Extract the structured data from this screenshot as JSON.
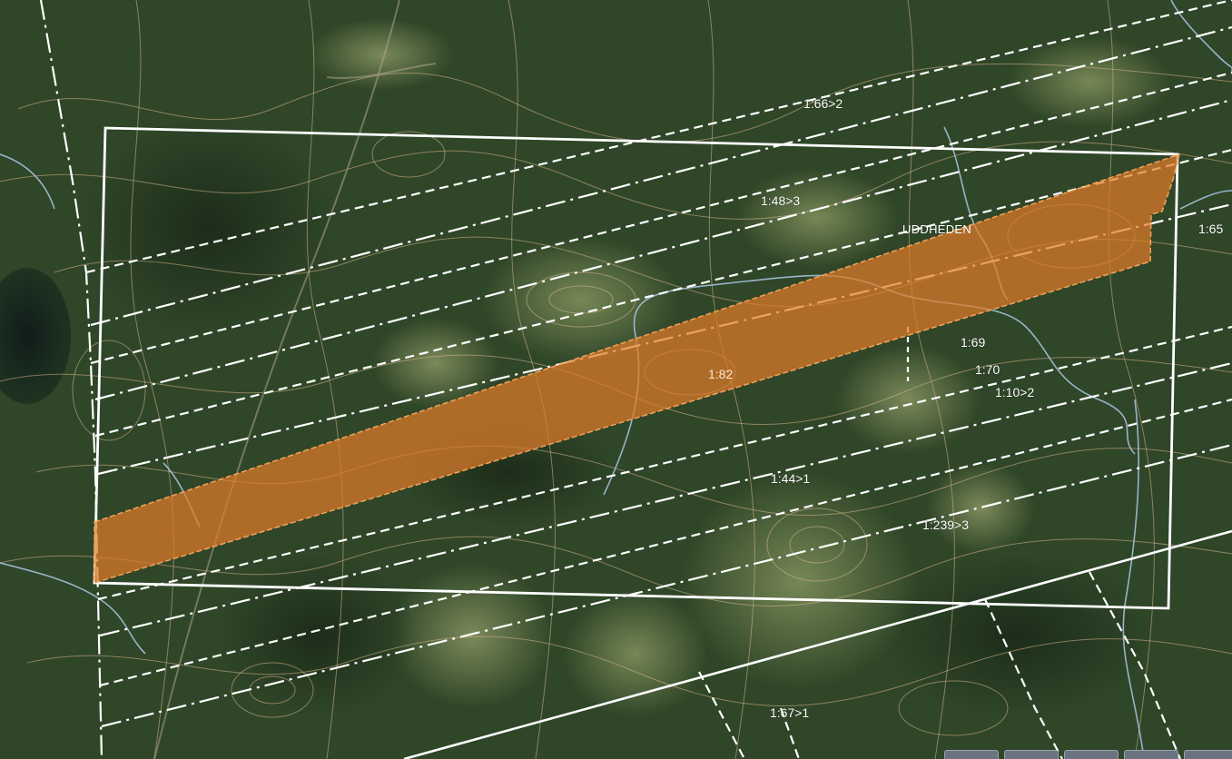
{
  "map": {
    "place_name": "UDDHEDEN",
    "selected_parcel": {
      "label": "1:82",
      "fill": "#e07b2a"
    },
    "parcel_labels": [
      {
        "id": "p1-66",
        "text": "1:66>2"
      },
      {
        "id": "p1-48",
        "text": "1:48>3"
      },
      {
        "id": "p1-65",
        "text": "1:65"
      },
      {
        "id": "p1-69",
        "text": "1:69"
      },
      {
        "id": "p1-70",
        "text": "1:70"
      },
      {
        "id": "p1-10",
        "text": "1:10>2"
      },
      {
        "id": "p1-44",
        "text": "1:44>1"
      },
      {
        "id": "p1-239",
        "text": "1:239>3"
      },
      {
        "id": "p1-67",
        "text": "1:67>1"
      }
    ],
    "colors": {
      "boundary": "#ffffff",
      "contour": "#d9b58c",
      "water": "#a9c8e4",
      "forest": "#2c4326",
      "clearing": "#6d7f4d"
    },
    "toolbar_buttons": 5
  }
}
